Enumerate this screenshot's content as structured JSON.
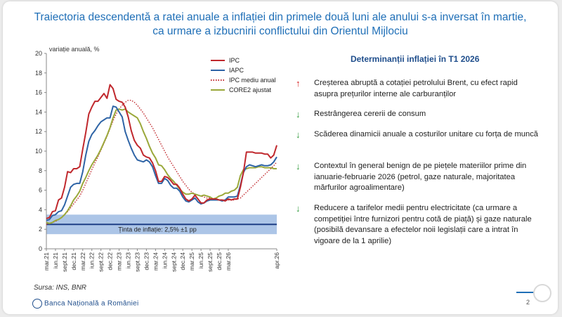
{
  "title": {
    "line1": "Traiectoria descendentă a ratei anuale a inflației din primele două luni ale anului s-a inversat în martie,",
    "line2": "ca urmare a izbucnirii conflictului din Orientul Mijlociu"
  },
  "chart_data": {
    "type": "line",
    "ylabel": "variație anuală, %",
    "ylim": [
      0,
      20
    ],
    "yticks": [
      0,
      2,
      4,
      6,
      8,
      10,
      12,
      14,
      16,
      18,
      20
    ],
    "x_tick_labels": [
      "mar.21",
      "iun.21",
      "sept.21",
      "dec.21",
      "mar.22",
      "iun.22",
      "sept.22",
      "dec.22",
      "mar.23",
      "iun.23",
      "sept.23",
      "dec.23",
      "mar.24",
      "iun.24",
      "sept.24",
      "dec.24",
      "mar.25",
      "iun.25",
      "sept.25",
      "dec.25",
      "mar.26",
      "apr.26"
    ],
    "x_start": "mar.21",
    "x_end": "apr.26",
    "target_band": {
      "label": "Ținta de inflație: 2,5% ±1 pp",
      "center": 2.5,
      "low": 1.5,
      "high": 3.5
    },
    "series": [
      {
        "name": "IPC",
        "color": "#c0282d",
        "dash": "solid",
        "values": [
          3.1,
          3.2,
          3.8,
          3.9,
          5.0,
          5.2,
          6.3,
          7.9,
          7.8,
          8.2,
          8.2,
          8.4,
          10.2,
          11.9,
          13.8,
          14.5,
          15.1,
          15.1,
          15.5,
          15.9,
          15.4,
          16.8,
          16.4,
          15.3,
          15.1,
          15.0,
          14.5,
          13.5,
          12.1,
          11.1,
          10.6,
          10.3,
          9.6,
          9.4,
          9.3,
          8.8,
          8.0,
          6.9,
          6.9,
          7.4,
          7.3,
          7.0,
          6.6,
          6.6,
          6.2,
          5.6,
          5.1,
          4.9,
          5.1,
          5.5,
          5.1,
          4.7,
          4.7,
          5.0,
          5.1,
          5.1,
          5.1,
          5.0,
          5.0,
          4.9,
          5.1,
          5.0,
          5.1,
          5.1,
          6.3,
          7.8,
          9.9,
          9.9,
          9.9,
          9.8,
          9.8,
          9.8,
          9.7,
          9.7,
          9.3,
          9.6,
          10.6
        ]
      },
      {
        "name": "IAPC",
        "color": "#2e64a6",
        "dash": "solid",
        "values": [
          2.9,
          3.0,
          3.4,
          3.5,
          3.8,
          3.9,
          4.5,
          5.4,
          6.3,
          6.6,
          6.7,
          6.7,
          7.9,
          9.6,
          11.0,
          11.7,
          12.1,
          12.6,
          13.0,
          13.2,
          13.4,
          13.4,
          14.6,
          14.5,
          14.0,
          13.5,
          12.0,
          11.1,
          10.3,
          9.6,
          9.1,
          9.0,
          8.9,
          9.1,
          8.9,
          8.4,
          7.5,
          6.7,
          6.7,
          7.2,
          7.0,
          6.5,
          6.2,
          6.2,
          5.9,
          5.3,
          4.9,
          4.8,
          5.0,
          5.2,
          4.8,
          4.6,
          4.7,
          4.9,
          5.0,
          5.0,
          5.0,
          5.0,
          4.9,
          5.0,
          5.3,
          5.3,
          5.3,
          5.4,
          6.5,
          7.8,
          8.4,
          8.6,
          8.5,
          8.4,
          8.5,
          8.6,
          8.5,
          8.5,
          8.6,
          8.9,
          9.4
        ]
      },
      {
        "name": "IPC mediu anual",
        "color": "#c0282d",
        "dash": "dotted",
        "values": [
          2.5,
          2.6,
          2.7,
          2.8,
          3.0,
          3.2,
          3.5,
          3.8,
          4.2,
          4.6,
          5.0,
          5.4,
          6.0,
          6.7,
          7.4,
          8.1,
          8.8,
          9.4,
          10.1,
          10.8,
          11.5,
          12.3,
          13.1,
          13.8,
          14.3,
          14.7,
          15.0,
          15.2,
          15.2,
          15.0,
          14.7,
          14.3,
          13.9,
          13.4,
          12.9,
          12.4,
          11.8,
          11.2,
          10.6,
          10.0,
          9.4,
          8.9,
          8.4,
          7.9,
          7.4,
          6.9,
          6.5,
          6.1,
          5.8,
          5.6,
          5.5,
          5.4,
          5.3,
          5.2,
          5.2,
          5.1,
          5.1,
          5.0,
          5.0,
          5.0,
          5.0,
          5.0,
          5.0,
          5.1,
          5.2,
          5.5,
          5.8,
          6.1,
          6.4,
          6.7,
          7.0,
          7.3,
          7.6,
          7.9,
          8.2,
          8.5,
          8.9
        ]
      },
      {
        "name": "CORE2 ajustat",
        "color": "#9aa83a",
        "dash": "solid",
        "values": [
          2.7,
          2.6,
          2.7,
          2.9,
          3.0,
          3.2,
          3.5,
          3.9,
          4.4,
          5.0,
          5.4,
          5.9,
          6.7,
          7.3,
          8.0,
          8.6,
          9.1,
          9.6,
          10.2,
          10.9,
          11.6,
          12.4,
          13.4,
          14.2,
          14.3,
          14.2,
          14.3,
          14.0,
          13.8,
          13.6,
          13.4,
          12.8,
          12.0,
          11.3,
          10.5,
          9.8,
          9.3,
          8.6,
          8.5,
          8.1,
          7.6,
          7.2,
          6.9,
          6.5,
          6.1,
          5.8,
          5.6,
          5.6,
          5.7,
          5.6,
          5.5,
          5.4,
          5.5,
          5.4,
          5.3,
          5.1,
          5.2,
          5.4,
          5.5,
          5.7,
          5.7,
          5.9,
          6.0,
          6.3,
          7.5,
          8.1,
          8.2,
          8.3,
          8.3,
          8.3,
          8.4,
          8.4,
          8.3,
          8.3,
          8.3,
          8.2,
          8.2
        ]
      }
    ]
  },
  "panel": {
    "title": "Determinanții inflației în T1 2026",
    "items": [
      {
        "dir": "up",
        "icon": "arrow-up-icon",
        "color": "#d62020",
        "text": "Creșterea abruptă a cotației petrolului Brent, cu efect rapid asupra prețurilor interne ale carburanților"
      },
      {
        "dir": "down",
        "icon": "arrow-down-icon",
        "color": "#2f9a3a",
        "text": "Restrângerea cererii de consum"
      },
      {
        "dir": "down",
        "icon": "arrow-down-icon",
        "color": "#2f9a3a",
        "text": "Scăderea dinamicii anuale a costurilor unitare cu forța de muncă"
      },
      {
        "dir": "down",
        "icon": "arrow-down-icon",
        "color": "#2f9a3a",
        "text": "Contextul în general benign de pe piețele materiilor prime din ianuarie-februarie 2026 (petrol, gaze naturale, majoritatea mărfurilor agroalimentare)"
      },
      {
        "dir": "down",
        "icon": "arrow-down-icon",
        "color": "#2f9a3a",
        "text": "Reducere a tarifelor medii pentru electricitate (ca urmare a competiției între furnizori pentru cotă de piață) și gaze naturale (posibilă devansare a efectelor noii legislații care a intrat în vigoare de la 1 aprilie)"
      }
    ]
  },
  "footer": {
    "source": "Sursa: INS, BNR",
    "logo_text": "Banca Națională a României",
    "page": "2"
  }
}
